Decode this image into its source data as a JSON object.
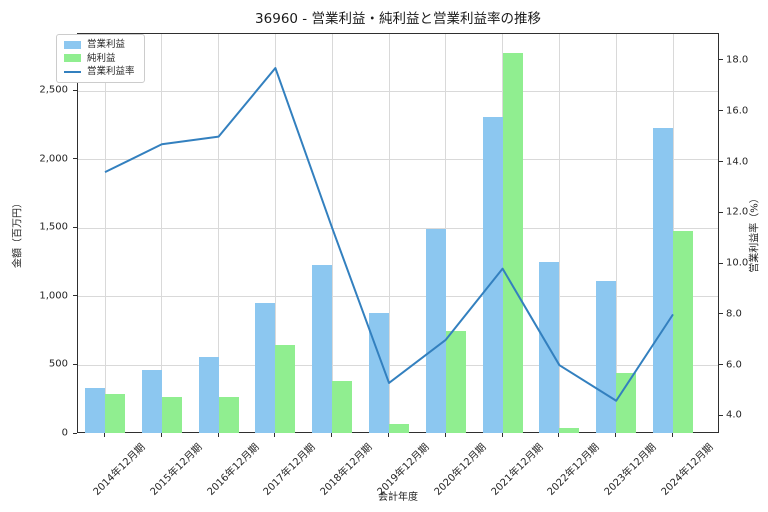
{
  "chart_data": {
    "type": "bar+line",
    "title": "36960 - 営業利益・純利益と営業利益率の推移",
    "xlabel": "会計年度",
    "left_axis": {
      "label": "金額（百万円）",
      "min": 0,
      "max": 2916,
      "ticks": [
        {
          "v": 0,
          "label": "0"
        },
        {
          "v": 500,
          "label": "500"
        },
        {
          "v": 1000,
          "label": "1,000"
        },
        {
          "v": 1500,
          "label": "1,500"
        },
        {
          "v": 2000,
          "label": "2,000"
        },
        {
          "v": 2500,
          "label": "2,500"
        }
      ],
      "grid_values": [
        500,
        1000,
        1500,
        2000,
        2500
      ]
    },
    "right_axis": {
      "label": "営業利益率（%）",
      "min": 3.31,
      "max": 19.04,
      "ticks": [
        {
          "v": 4,
          "label": "4.0"
        },
        {
          "v": 6,
          "label": "6.0"
        },
        {
          "v": 8,
          "label": "8.0"
        },
        {
          "v": 10,
          "label": "10.0"
        },
        {
          "v": 12,
          "label": "12.0"
        },
        {
          "v": 14,
          "label": "14.0"
        },
        {
          "v": 16,
          "label": "16.0"
        },
        {
          "v": 18,
          "label": "18.0"
        }
      ]
    },
    "categories": [
      "2014年12月期",
      "2015年12月期",
      "2016年12月期",
      "2017年12月期",
      "2018年12月期",
      "2019年12月期",
      "2020年12月期",
      "2021年12月期",
      "2022年12月期",
      "2023年12月期",
      "2024年12月期"
    ],
    "series": [
      {
        "key": "operating-profit",
        "name": "営業利益",
        "type": "bar",
        "axis": "left",
        "color": "#8cc7f0",
        "values": [
          330,
          460,
          555,
          955,
          1230,
          880,
          1490,
          2310,
          1250,
          1115,
          2230
        ]
      },
      {
        "key": "net-profit",
        "name": "純利益",
        "type": "bar",
        "axis": "left",
        "color": "#90ee90",
        "values": [
          290,
          265,
          270,
          645,
          385,
          72,
          750,
          2780,
          43,
          445,
          1480
        ]
      },
      {
        "key": "operating-margin",
        "name": "営業利益率",
        "type": "line",
        "axis": "right",
        "color": "#3380bf",
        "values": [
          13.6,
          14.7,
          15.0,
          17.7,
          11.4,
          5.3,
          7.0,
          9.8,
          6.0,
          4.6,
          8.0
        ]
      }
    ],
    "legend": {
      "position": "upper-left"
    },
    "style": {
      "grid_color": "#d9d9d9",
      "spine_color": "#2f2f2f",
      "tick_text_color": "#262626",
      "title_color": "#1a1a1a",
      "background": "#ffffff"
    }
  }
}
